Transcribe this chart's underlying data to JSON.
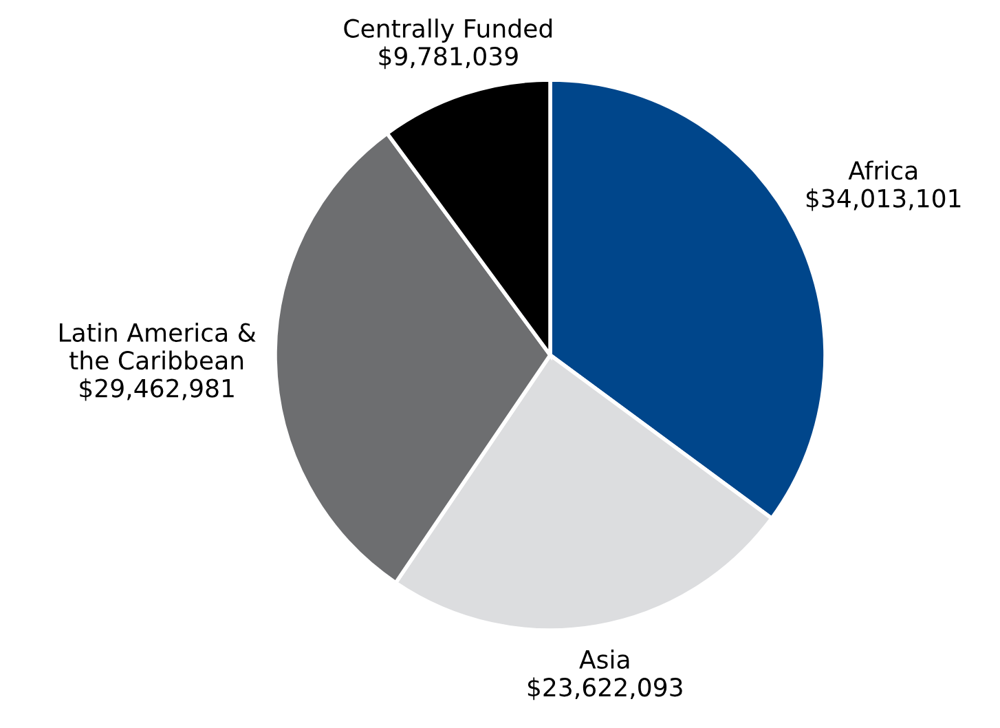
{
  "chart_data": {
    "type": "pie",
    "categories": [
      "Africa",
      "Asia",
      "Latin America &\nthe Caribbean",
      "Centrally Funded"
    ],
    "values": [
      34013101,
      23622093,
      29462981,
      9781039
    ],
    "value_labels": [
      "$34,013,101",
      "$23,622,093",
      "$29,462,981",
      "$9,781,039"
    ],
    "colors": [
      "#00468b",
      "#dcdddf",
      "#6d6e70",
      "#000000"
    ],
    "legend": false
  }
}
